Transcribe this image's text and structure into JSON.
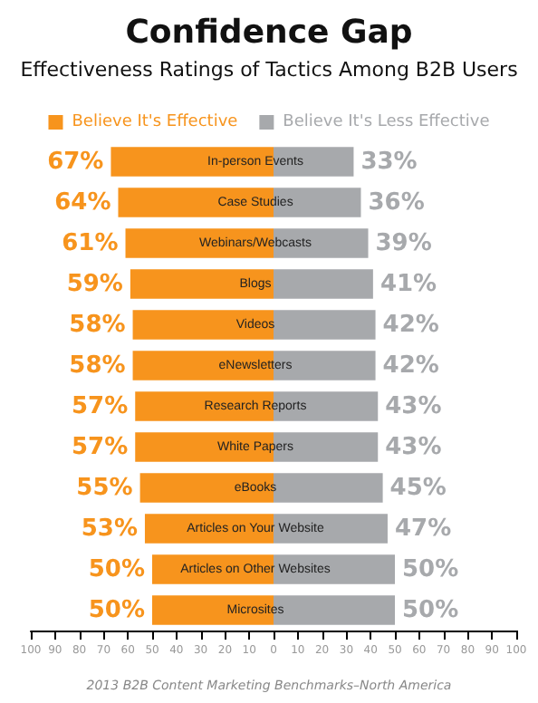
{
  "chart_data": {
    "type": "bar",
    "orientation": "horizontal",
    "title": "Confidence Gap",
    "subtitle": "Effectiveness Ratings of Tactics Among B2B Users",
    "categories": [
      "In-person Events",
      "Case Studies",
      "Webinars/Webcasts",
      "Blogs",
      "Videos",
      "eNewsletters",
      "Research Reports",
      "White Papers",
      "eBooks",
      "Articles on Your Website",
      "Articles on Other Websites",
      "Microsites"
    ],
    "series": [
      {
        "name": "Believe It's Effective",
        "color": "#f7941d",
        "values": [
          67,
          64,
          61,
          59,
          58,
          58,
          57,
          57,
          55,
          53,
          50,
          50
        ],
        "base": [
          -67,
          -64,
          -61,
          -59,
          -58,
          -58,
          -57,
          -57,
          -55,
          -53,
          -50,
          -50
        ],
        "value_labels": [
          "67%",
          "64%",
          "61%",
          "59%",
          "58%",
          "58%",
          "57%",
          "57%",
          "55%",
          "53%",
          "50%",
          "50%"
        ]
      },
      {
        "name": "Believe It's Less Effective",
        "color": "#a7a9ac",
        "values": [
          33,
          36,
          39,
          41,
          42,
          42,
          43,
          43,
          45,
          47,
          50,
          50
        ],
        "value_labels": [
          "33%",
          "36%",
          "39%",
          "41%",
          "42%",
          "42%",
          "43%",
          "43%",
          "45%",
          "47%",
          "50%",
          "50%"
        ]
      }
    ],
    "xlim": [
      -100,
      100
    ],
    "xticks": [
      {
        "value": -100,
        "label": "100"
      },
      {
        "value": -90,
        "label": "90"
      },
      {
        "value": -80,
        "label": "80"
      },
      {
        "value": -70,
        "label": "70"
      },
      {
        "value": -60,
        "label": "60"
      },
      {
        "value": -50,
        "label": "50"
      },
      {
        "value": -40,
        "label": "40"
      },
      {
        "value": -30,
        "label": "30"
      },
      {
        "value": -20,
        "label": "20"
      },
      {
        "value": -10,
        "label": "10"
      },
      0,
      10,
      20,
      30,
      40,
      50,
      60,
      70,
      80,
      90,
      100
    ],
    "legend": "top",
    "grid": false,
    "annotations": [
      "2013 B2B Content Marketing Benchmarks–North America"
    ]
  }
}
